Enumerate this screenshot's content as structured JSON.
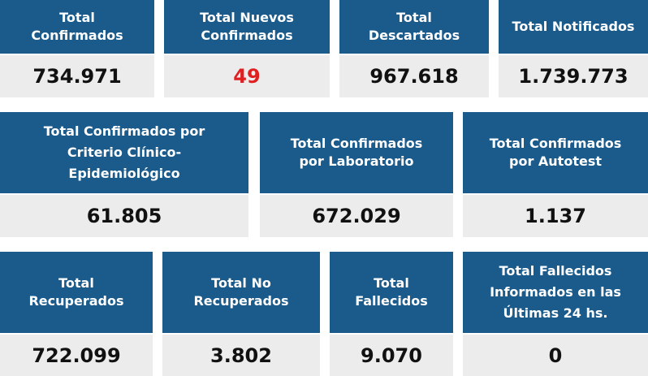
{
  "colors": {
    "header_bg": "#1a5b8c",
    "value_bg": "#ececec",
    "highlight": "#e02020"
  },
  "rows": [
    {
      "cards": [
        {
          "label": "Total\nConfirmados",
          "value": "734.971"
        },
        {
          "label": "Total Nuevos\nConfirmados",
          "value": "49"
        },
        {
          "label": "Total\nDescartados",
          "value": "967.618"
        },
        {
          "label": "Total Notificados",
          "value": "1.739.773"
        }
      ]
    },
    {
      "cards": [
        {
          "label": "Total Confirmados por\nCriterio Clínico-\nEpidemiológico",
          "value": "61.805"
        },
        {
          "label": "Total Confirmados\npor Laboratorio",
          "value": "672.029"
        },
        {
          "label": "Total Confirmados\npor Autotest",
          "value": "1.137"
        }
      ]
    },
    {
      "cards": [
        {
          "label": "Total\nRecuperados",
          "value": "722.099"
        },
        {
          "label": "Total No\nRecuperados",
          "value": "3.802"
        },
        {
          "label": "Total\nFallecidos",
          "value": "9.070"
        },
        {
          "label": "Total Fallecidos\nInformados en las\nÚltimas 24 hs.",
          "value": "0"
        }
      ]
    }
  ]
}
